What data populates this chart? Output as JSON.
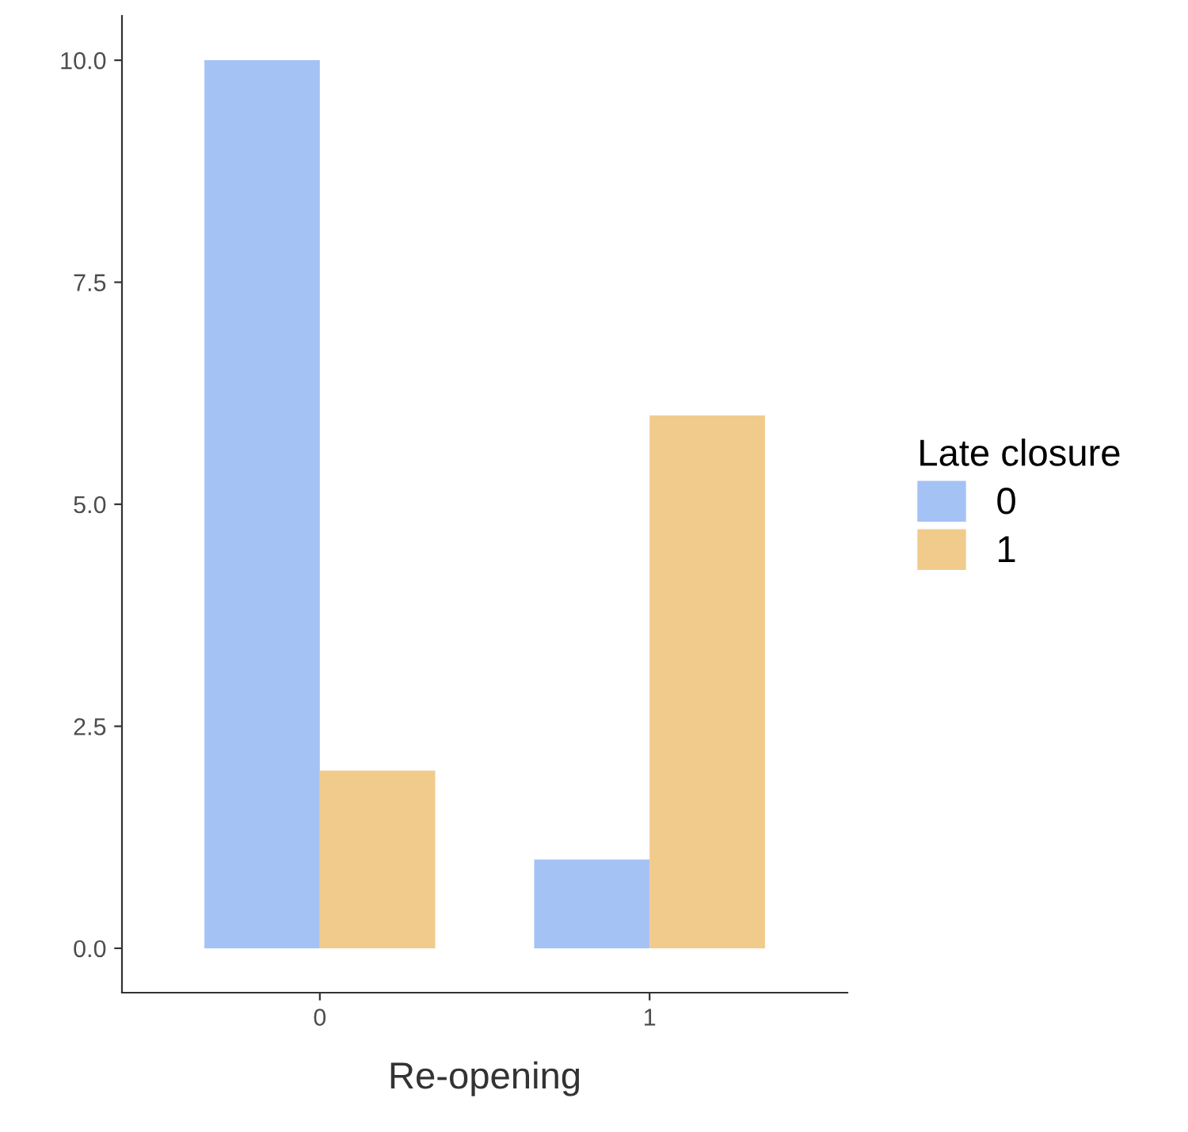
{
  "chart_data": {
    "type": "bar",
    "xlabel": "Re-opening",
    "legend_title": "Late closure",
    "categories": [
      "0",
      "1"
    ],
    "series": [
      {
        "name": "0",
        "color": "#a4c2f4",
        "values": [
          10,
          1
        ]
      },
      {
        "name": "1",
        "color": "#f0cb8c",
        "values": [
          2,
          6
        ]
      }
    ],
    "ylim": [
      -0.5,
      10.5
    ],
    "yticks": [
      {
        "value": 0,
        "label": "0.0"
      },
      {
        "value": 2.5,
        "label": "2.5"
      },
      {
        "value": 5,
        "label": "5.0"
      },
      {
        "value": 7.5,
        "label": "7.5"
      },
      {
        "value": 10,
        "label": "10.0"
      }
    ],
    "grid": false,
    "legend": "right"
  }
}
